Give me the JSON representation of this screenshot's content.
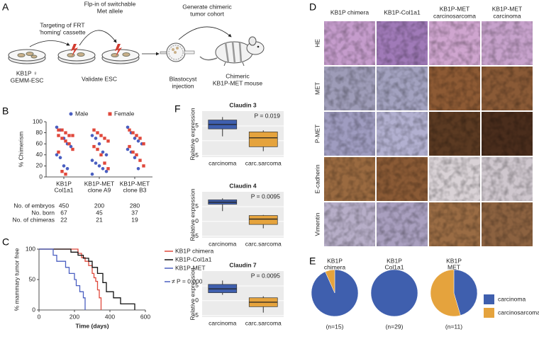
{
  "panel_labels": [
    "A",
    "B",
    "C",
    "D",
    "E",
    "F"
  ],
  "diagram": {
    "steps": [
      [
        "Targeting of FRT",
        "'homing' cassette"
      ],
      [
        "Flp-in of switchable",
        "Met allele"
      ],
      [
        "Generate chimeric",
        "tumor cohort"
      ]
    ],
    "stages": [
      [
        "KB1P ♀",
        "GEMM-ESC"
      ],
      [
        "Validate ESC"
      ],
      [
        "Blastocyst",
        "injection"
      ],
      [
        "Chimeric",
        "KB1P-MET mouse"
      ]
    ]
  },
  "histology": {
    "columns": [
      [
        "KB1P chimera"
      ],
      [
        "KB1P-Col1a1"
      ],
      [
        "KB1P-MET",
        "carcinosarcoma"
      ],
      [
        "KB1P-MET",
        "carcinoma"
      ]
    ],
    "rows": [
      "HE",
      "MET",
      "P-MET",
      "E-cadherin",
      "Vimentin"
    ]
  },
  "chart_data": [
    {
      "type": "strip",
      "ylabel": "% Chimerism",
      "categories": [
        [
          "KB1P",
          "Col1a1"
        ],
        [
          "KB1P-MET",
          "clone A9"
        ],
        [
          "KB1P-MET",
          "clone B3"
        ]
      ],
      "ylim": [
        0,
        100
      ],
      "yticks": [
        0,
        20,
        40,
        60,
        80,
        100
      ],
      "series": [
        {
          "name": "Male",
          "color": "#4a5fc1",
          "marker": "circle",
          "values": [
            [
              90,
              85,
              70,
              60,
              55,
              40,
              35,
              20,
              15
            ],
            [
              75,
              70,
              60,
              45,
              40,
              30,
              25,
              20,
              15,
              10,
              5
            ],
            [
              90,
              80,
              70,
              65,
              60,
              50,
              45,
              35,
              15
            ]
          ]
        },
        {
          "name": "Female",
          "color": "#e0483b",
          "marker": "square",
          "values": [
            [
              85,
              85,
              80,
              75,
              75,
              75,
              70,
              65,
              60,
              50,
              45,
              10,
              5
            ],
            [
              85,
              80,
              75,
              70,
              65,
              55,
              50,
              40,
              25,
              15
            ],
            [
              85,
              80,
              75,
              70,
              60,
              55,
              45,
              40,
              30,
              20
            ]
          ]
        }
      ],
      "table": [
        {
          "label": "No. of embryos",
          "values": [
            450,
            200,
            280
          ]
        },
        {
          "label": "No. born",
          "values": [
            67,
            45,
            37
          ]
        },
        {
          "label": "No. of chimeras",
          "values": [
            22,
            21,
            19
          ]
        }
      ]
    },
    {
      "type": "step",
      "ylabel": "% mammary tumor free",
      "xlabel": "Time (days)",
      "xlim": [
        0,
        600
      ],
      "xticks": [
        0,
        200,
        400,
        600
      ],
      "ylim": [
        0,
        100
      ],
      "yticks": [
        0,
        50,
        100
      ],
      "series": [
        {
          "name": "KB1P chimera",
          "color": "#e0483b",
          "x": [
            0,
            220,
            240,
            260,
            280,
            300,
            310,
            320,
            330,
            340,
            350
          ],
          "values": [
            100,
            93,
            86,
            80,
            73,
            60,
            53,
            47,
            33,
            20,
            0
          ]
        },
        {
          "name": "KB1P-Col1a1",
          "color": "#111111",
          "x": [
            0,
            180,
            220,
            250,
            280,
            300,
            330,
            360,
            380,
            420,
            460,
            540
          ],
          "values": [
            100,
            95,
            90,
            85,
            80,
            70,
            60,
            45,
            30,
            20,
            10,
            0
          ]
        },
        {
          "name": "KB1P-MET",
          "color": "#4a5fc1",
          "x": [
            0,
            80,
            100,
            150,
            170,
            200,
            210,
            230,
            250,
            260
          ],
          "values": [
            100,
            90,
            80,
            70,
            60,
            50,
            40,
            30,
            20,
            0
          ]
        }
      ],
      "annotation": "≠ P = 0.0008"
    },
    {
      "type": "box",
      "title": "Claudin 3",
      "ylabel": "Relative expression",
      "annotation": "P = 0.019",
      "categories": [
        "carcinoma",
        "carc.sarcoma"
      ],
      "colors": [
        "#3f5fae",
        "#e5a33d"
      ],
      "ylim": [
        -5.5,
        10
      ],
      "yticks": [
        -5,
        0,
        5
      ],
      "boxes": [
        {
          "min": 1.5,
          "q1": 4,
          "median": 5.5,
          "q3": 7,
          "max": 8
        },
        {
          "min": -3.5,
          "q1": -2,
          "median": 1,
          "q3": 3,
          "max": 3.5
        }
      ]
    },
    {
      "type": "box",
      "title": "Claudin 4",
      "ylabel": "Relative expression",
      "annotation": "P = 0.0095",
      "categories": [
        "carcinoma",
        "carc.sarcoma"
      ],
      "colors": [
        "#3f5fae",
        "#e5a33d"
      ],
      "ylim": [
        -5.5,
        10
      ],
      "yticks": [
        -5,
        0,
        5
      ],
      "boxes": [
        {
          "min": 3.5,
          "q1": 5.8,
          "median": 6.5,
          "q3": 7.3,
          "max": 7.8
        },
        {
          "min": -2.3,
          "q1": -1,
          "median": 0.8,
          "q3": 2,
          "max": 2.2
        }
      ]
    },
    {
      "type": "box",
      "title": "Claudin 7",
      "ylabel": "Relative expression",
      "annotation": "P = 0.0095",
      "categories": [
        "carcinoma",
        "carc.sarcoma"
      ],
      "colors": [
        "#3f5fae",
        "#e5a33d"
      ],
      "ylim": [
        -5.5,
        10
      ],
      "yticks": [
        -5,
        0,
        5
      ],
      "boxes": [
        {
          "min": 2,
          "q1": 2.7,
          "median": 4,
          "q3": 5.5,
          "max": 6.8
        },
        {
          "min": -4,
          "q1": -2,
          "median": -0.5,
          "q3": 1,
          "max": 1.5
        }
      ]
    },
    {
      "type": "pie",
      "legend": [
        "carcinoma",
        "carcinosarcoma"
      ],
      "colors": [
        "#3f5fae",
        "#e5a33d"
      ],
      "pies": [
        {
          "title": [
            "KB1P",
            "chimera"
          ],
          "note": "(n=15)",
          "values": [
            14,
            1
          ]
        },
        {
          "title": [
            "KB1P",
            "Col1a1"
          ],
          "note": "(n=29)",
          "values": [
            29,
            0
          ]
        },
        {
          "title": [
            "KB1P",
            "MET"
          ],
          "note": "(n=11)",
          "values": [
            5,
            6
          ]
        }
      ]
    }
  ]
}
